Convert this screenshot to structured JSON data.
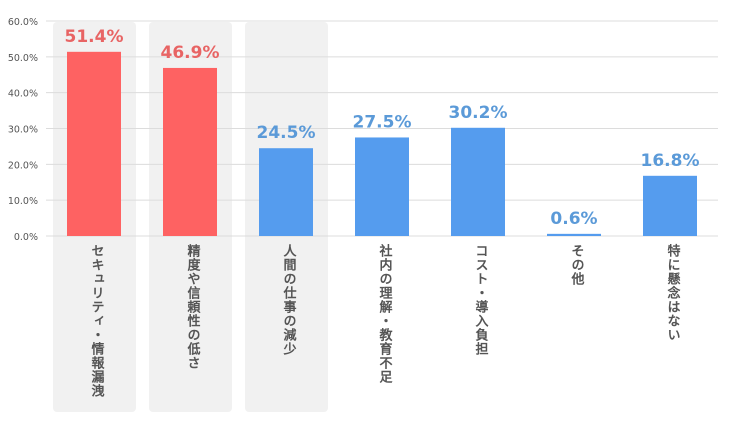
{
  "chart_data": {
    "type": "bar",
    "categories": [
      "セキュリティ・情報漏洩",
      "精度や信頼性の低さ",
      "人間の仕事の減少",
      "社内の理解・教育不足",
      "コスト・導入負担",
      "その他",
      "特に懸念はない"
    ],
    "values": [
      51.4,
      46.9,
      24.5,
      27.5,
      30.2,
      0.6,
      16.8
    ],
    "value_labels": [
      "51.4%",
      "46.9%",
      "24.5%",
      "27.5%",
      "30.2%",
      "0.6%",
      "16.8%"
    ],
    "highlighted": [
      true,
      true,
      false,
      false,
      false,
      false,
      false
    ],
    "shaded_categories": [
      0,
      1,
      2
    ],
    "yticks": [
      "0.0%",
      "10.0%",
      "20.0%",
      "30.0%",
      "40.0%",
      "50.0%",
      "60.0%"
    ],
    "ylim": [
      0,
      60
    ],
    "grid": true,
    "colors": {
      "highlight_bar": "#fe6262",
      "normal_bar": "#559cee",
      "highlight_label": "#e86464",
      "normal_label": "#5b9ad8",
      "shade": "#f1f1f1",
      "grid": "#dcdcdc"
    }
  }
}
